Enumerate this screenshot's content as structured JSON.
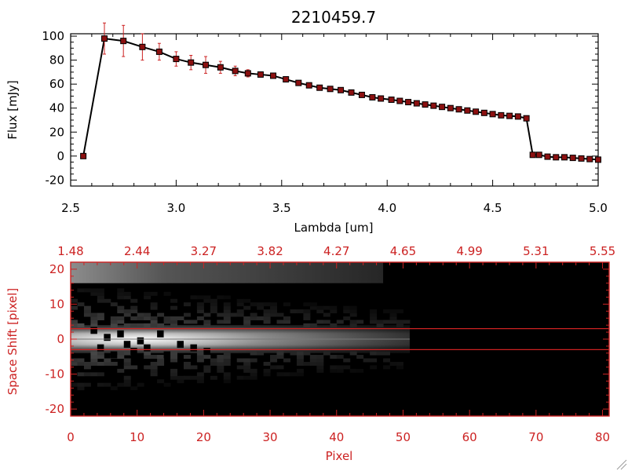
{
  "colors": {
    "axis": "#000000",
    "accent": "#cc2222",
    "marker": "#8b1010",
    "background": "#ffffff"
  },
  "chart_data": [
    {
      "type": "line",
      "title": "2210459.7",
      "xlabel": "Lambda [um]",
      "ylabel": "Flux [mJy]",
      "xlim": [
        2.5,
        5.0
      ],
      "ylim": [
        -25,
        102
      ],
      "x_ticks": [
        "2.5",
        "3.0",
        "3.5",
        "4.0",
        "4.5",
        "5.0"
      ],
      "y_ticks": [
        "-20",
        "0",
        "20",
        "40",
        "60",
        "80",
        "100"
      ],
      "grid": false,
      "series": [
        {
          "x": [
            2.56,
            2.66,
            2.75,
            2.84,
            2.92,
            3.0,
            3.07,
            3.14,
            3.21,
            3.28,
            3.34,
            3.4,
            3.46,
            3.52,
            3.58,
            3.63,
            3.68,
            3.73,
            3.78,
            3.83,
            3.88,
            3.93,
            3.97,
            4.02,
            4.06,
            4.1,
            4.14,
            4.18,
            4.22,
            4.26,
            4.3,
            4.34,
            4.38,
            4.42,
            4.46,
            4.5,
            4.54,
            4.58,
            4.62,
            4.66,
            4.69,
            4.72,
            4.76,
            4.8,
            4.84,
            4.88,
            4.92,
            4.96,
            5.0
          ],
          "y": [
            0,
            98,
            96,
            91,
            87,
            81,
            78,
            76,
            74,
            71,
            69,
            68,
            67,
            64,
            61,
            59,
            57,
            56,
            55,
            53,
            51,
            49,
            48,
            47,
            46,
            45,
            44,
            43,
            42,
            41,
            40,
            39,
            38,
            37,
            36,
            35,
            34,
            33.5,
            33,
            31.5,
            1,
            1,
            -0.5,
            -1,
            -1,
            -1.5,
            -2,
            -2.5,
            -3
          ],
          "yerr": [
            1,
            13,
            13,
            11,
            7,
            6,
            6,
            7,
            5,
            4,
            3,
            2,
            1.5,
            1.5,
            1.5,
            1,
            1,
            1,
            1,
            1,
            1,
            1,
            1,
            1,
            1,
            1,
            1,
            1,
            1,
            1,
            1,
            1,
            1,
            1,
            1,
            1,
            1,
            1,
            1,
            1,
            1,
            1,
            1,
            1,
            1,
            1,
            1,
            1,
            1
          ]
        }
      ]
    },
    {
      "type": "heatmap",
      "xlabel": "Pixel",
      "ylabel": "Space Shift [pixel]",
      "xlim": [
        0,
        81
      ],
      "ylim": [
        -22,
        22
      ],
      "x_ticks": [
        "0",
        "10",
        "20",
        "30",
        "40",
        "50",
        "60",
        "70",
        "80"
      ],
      "y_ticks": [
        "-20",
        "-10",
        "0",
        "10",
        "20"
      ],
      "top_axis_ticks": [
        "1.48",
        "2.44",
        "3.27",
        "3.82",
        "4.27",
        "4.65",
        "4.99",
        "5.31",
        "5.55"
      ],
      "signal_extent_pixel": [
        0,
        51
      ],
      "trace_center": 0,
      "extraction_window": [
        -3,
        3
      ],
      "upper_band_center": 19
    }
  ]
}
